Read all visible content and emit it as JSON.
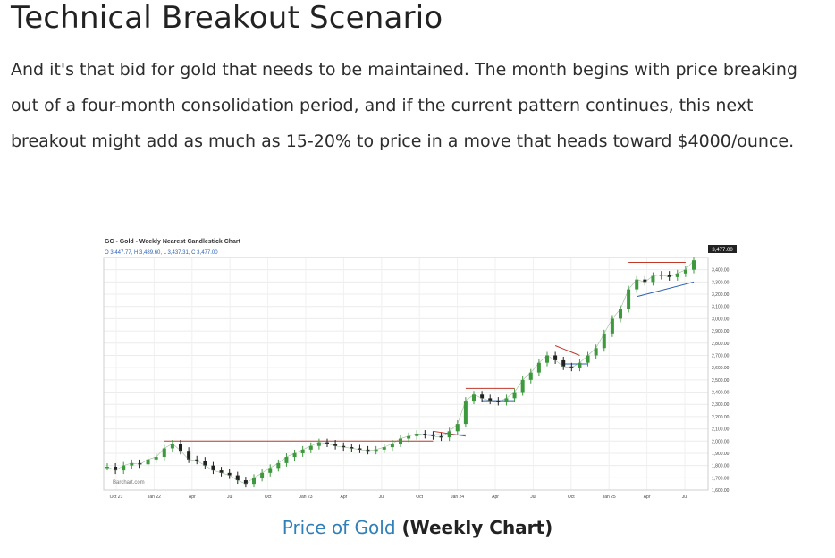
{
  "article": {
    "heading": "Technical Breakout Scenario",
    "paragraph": "And it's that bid for gold that needs to be maintained. The month begins with price breaking out of a four-month consolidation period, and if the current pattern continues, this next breakout might add as much as 15-20% to price in a move that heads toward $4000/ounce."
  },
  "caption": {
    "link_text": "Price of Gold",
    "suffix": " (Weekly Chart)"
  },
  "colors": {
    "up_candle": "#3c9a3c",
    "down_candle": "#222222",
    "resistance_line": "#c0392b",
    "support_line": "#2b5fb4",
    "caption_link": "#2f7fb8",
    "price_marker": "#222222"
  },
  "chart_data": {
    "type": "line",
    "title": "GC - Gold - Weekly Nearest Candlestick Chart",
    "ohlc_text": "O 3,447.77, H 3,489.60, L 3,437.31, C 3,477.00",
    "last_price_label": "3,477.00",
    "watermark": "Barchart.com",
    "x_tick_labels": [
      "Oct 21",
      "Jan 22",
      "Apr",
      "Jul",
      "Oct",
      "Jan 23",
      "Apr",
      "Jul",
      "Oct",
      "Jan 24",
      "Apr",
      "Jul",
      "Oct",
      "Jan 25",
      "Apr",
      "Jul"
    ],
    "y_tick_labels": [
      "3,400.00",
      "3,300.00",
      "3,200.00",
      "3,100.00",
      "3,000.00",
      "2,900.00",
      "2,800.00",
      "2,700.00",
      "2,600.00",
      "2,500.00",
      "2,400.00",
      "2,300.00",
      "2,200.00",
      "2,100.00",
      "2,000.00",
      "1,900.00",
      "1,800.00",
      "1,700.00",
      "1,600.00"
    ],
    "ylim": [
      1600,
      3500
    ],
    "grid": true,
    "series": [
      {
        "values": [
          1790,
          1760,
          1800,
          1820,
          1810,
          1850,
          1870,
          1940,
          1980,
          1920,
          1850,
          1840,
          1800,
          1760,
          1740,
          1720,
          1680,
          1650,
          1700,
          1740,
          1780,
          1820,
          1870,
          1900,
          1930,
          1960,
          1990,
          1980,
          1960,
          1950,
          1940,
          1930,
          1920,
          1930,
          1950,
          1980,
          2020,
          2040,
          2060,
          2050,
          2040,
          2030,
          2080,
          2140,
          2330,
          2380,
          2350,
          2330,
          2320,
          2350,
          2400,
          2500,
          2560,
          2640,
          2700,
          2660,
          2610,
          2600,
          2640,
          2700,
          2760,
          2880,
          3000,
          3080,
          3240,
          3320,
          3300,
          3350,
          3360,
          3340,
          3370,
          3400,
          3477
        ]
      }
    ]
  }
}
